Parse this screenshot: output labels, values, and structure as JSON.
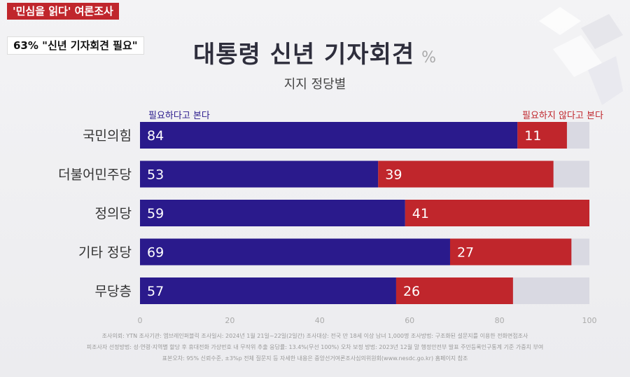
{
  "header": {
    "tag": "'민심을 읽다' 여론조사",
    "headline": "63% \"신년 기자회견 필요\""
  },
  "chart_data": {
    "type": "bar",
    "orientation": "horizontal",
    "stacked": true,
    "title": "대통령 신년 기자회견",
    "unit": "%",
    "subtitle": "지지 정당별",
    "categories": [
      "국민의힘",
      "더불어민주당",
      "정의당",
      "기타 정당",
      "무당층"
    ],
    "series": [
      {
        "name": "필요하다고 본다",
        "color": "#2a1a8c",
        "values": [
          84,
          53,
          59,
          69,
          57
        ]
      },
      {
        "name": "필요하지 않다고 본다",
        "color": "#c0262c",
        "values": [
          11,
          39,
          41,
          27,
          26
        ]
      }
    ],
    "remainder_color": "#d9d9e2",
    "xlim": [
      0,
      100
    ],
    "xticks": [
      0,
      20,
      40,
      60,
      80,
      100
    ]
  },
  "footer": {
    "line1": "조사의뢰: YTN     조사기관: 엠브레인퍼블릭     조사일시: 2024년 1월 21일~22일(2일간)     조사대상: 전국 만 18세 이상 남녀 1,000명     조사방법: 구조화된 설문지를 이용한 전화면접조사",
    "line2": "피조사자 선정방법: 성·연령·지역별 할당 후 휴대전화 가상번호 내 무작위 추출     응답률: 13.4%(무선 100%)     오차 보정 방법: 2023년 12월 말 행정안전부 발표 주민등록인구통계 기준 가중치 부여",
    "line3": "표본오차: 95% 신뢰수준, ±3%p     전체 질문지 등 자세한 내용은 중앙선거여론조사심의위원회(www.nesdc.go.kr) 홈페이지 참조"
  }
}
